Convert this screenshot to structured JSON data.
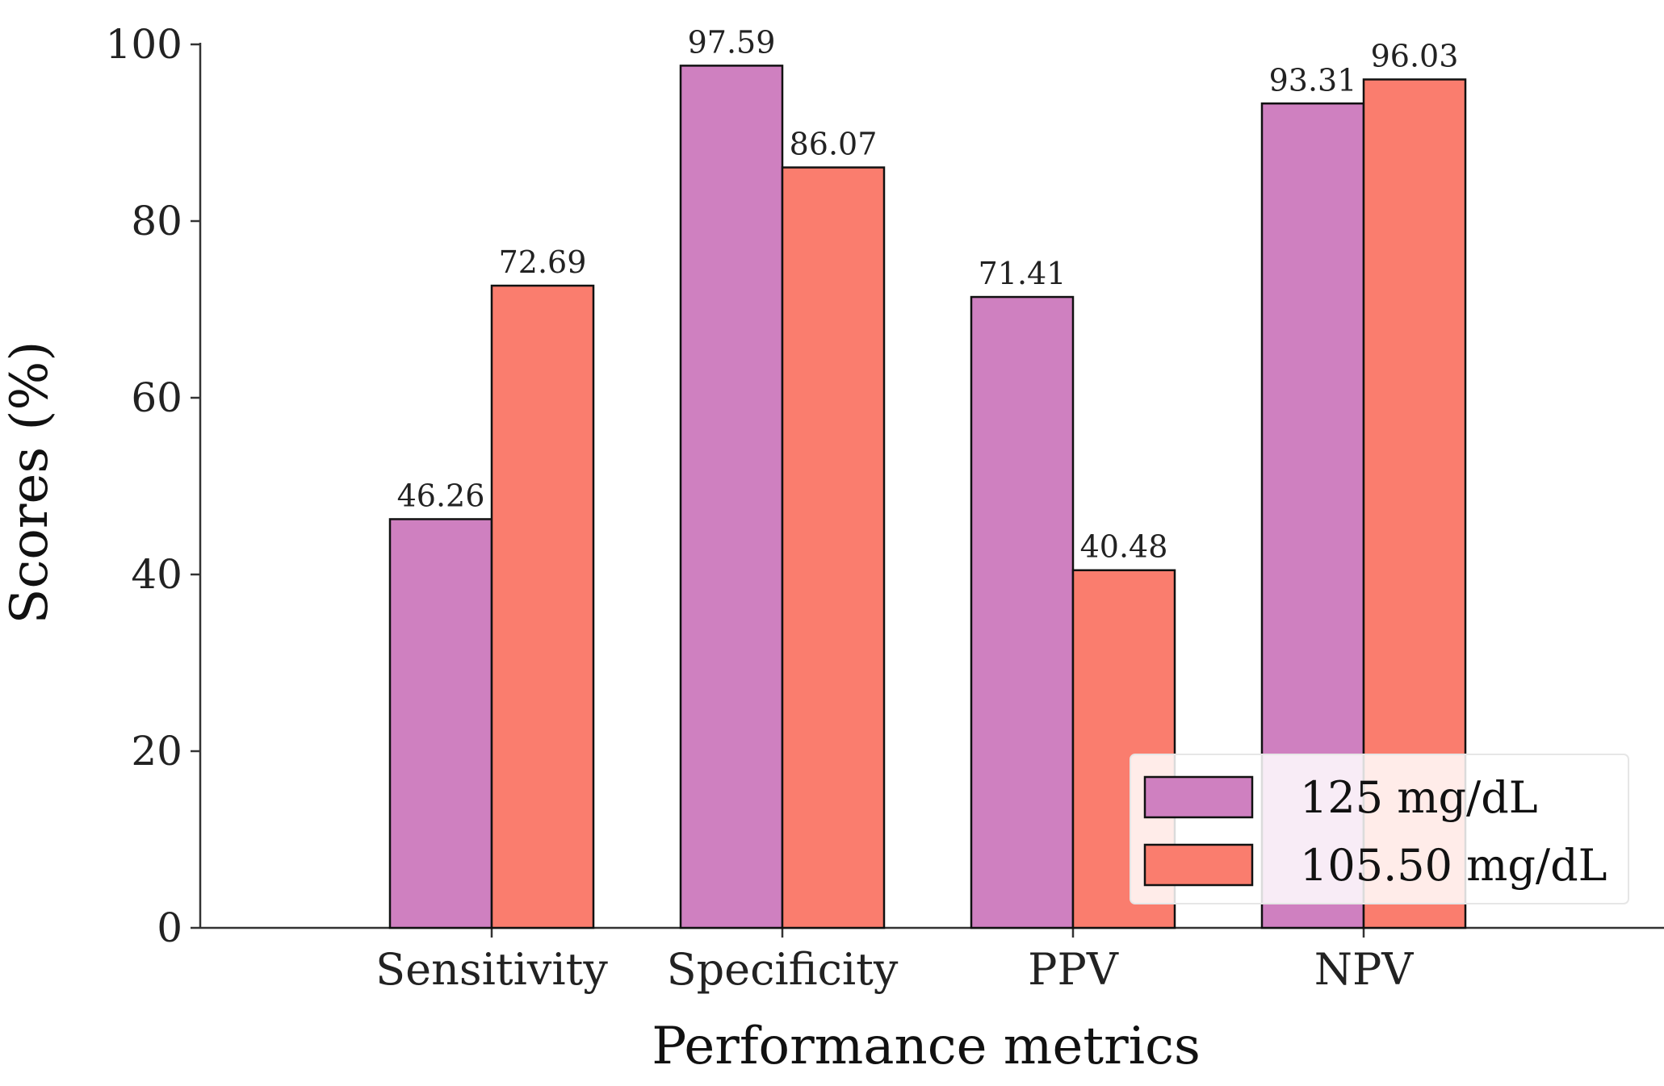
{
  "chart_data": {
    "type": "bar",
    "title": "",
    "xlabel": "Performance metrics",
    "ylabel": "Scores (%)",
    "categories": [
      "Sensitivity",
      "Specificity",
      "PPV",
      "NPV"
    ],
    "series": [
      {
        "name": "125 mg/dL",
        "color": "#cf80c0",
        "values": [
          46.26,
          97.59,
          71.41,
          93.31
        ],
        "labels": [
          "46.26",
          "97.59",
          "71.41",
          "93.31"
        ]
      },
      {
        "name": "105.50 mg/dL",
        "color": "#fa7d6e",
        "values": [
          72.69,
          86.07,
          40.48,
          96.03
        ],
        "labels": [
          "72.69",
          "86.07",
          "40.48",
          "96.03"
        ]
      }
    ],
    "ylim": [
      0,
      100
    ],
    "yticks": [
      0,
      20,
      40,
      60,
      80,
      100
    ],
    "ytick_labels": [
      "0",
      "20",
      "40",
      "60",
      "80",
      "100"
    ],
    "grid": false,
    "legend_position": "bottom-right"
  }
}
